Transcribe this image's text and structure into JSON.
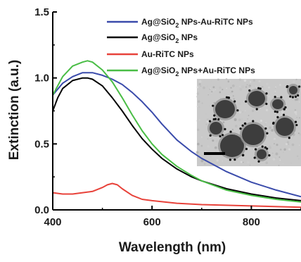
{
  "chart_data": {
    "type": "line",
    "xlabel": "Wavelength (nm)",
    "ylabel": "Extinction (a.u.)",
    "xlim": [
      400,
      900
    ],
    "ylim": [
      0,
      1.5
    ],
    "x_ticks": [
      400,
      600,
      800
    ],
    "y_ticks": [
      0.0,
      0.5,
      1.0,
      1.5
    ],
    "x_tick_labels": [
      "400",
      "600",
      "800"
    ],
    "y_tick_labels": [
      "0.0",
      "0.5",
      "1.0",
      "1.5"
    ],
    "grid": false,
    "legend_placement": "top-right",
    "series": [
      {
        "name": "Ag@SiO2 NPs-Au-RiTC NPs",
        "legend_main": "Ag@SiO",
        "legend_sub": "2",
        "legend_rest": " NPs-Au-RiTC NPs",
        "color": "#3a4bab",
        "x": [
          400,
          420,
          440,
          460,
          480,
          500,
          520,
          540,
          560,
          580,
          600,
          620,
          650,
          680,
          700,
          750,
          800,
          850,
          900
        ],
        "y": [
          0.87,
          0.96,
          1.01,
          1.04,
          1.04,
          1.02,
          0.99,
          0.95,
          0.89,
          0.82,
          0.74,
          0.65,
          0.53,
          0.44,
          0.39,
          0.29,
          0.21,
          0.15,
          0.1
        ]
      },
      {
        "name": "Ag@SiO2 NPs",
        "legend_main": "Ag@SiO",
        "legend_sub": "2",
        "legend_rest": " NPs",
        "color": "#000000",
        "x": [
          400,
          410,
          420,
          440,
          460,
          470,
          480,
          500,
          520,
          540,
          560,
          580,
          600,
          620,
          650,
          680,
          700,
          750,
          800,
          850,
          900
        ],
        "y": [
          0.75,
          0.85,
          0.92,
          0.98,
          1.0,
          1.0,
          0.99,
          0.94,
          0.85,
          0.75,
          0.64,
          0.54,
          0.46,
          0.39,
          0.31,
          0.25,
          0.22,
          0.16,
          0.12,
          0.09,
          0.07
        ]
      },
      {
        "name": "Au-RiTC NPs",
        "legend_main": "Au-RiTC NPs",
        "legend_sub": "",
        "legend_rest": "",
        "color": "#e8423a",
        "x": [
          400,
          420,
          440,
          460,
          480,
          500,
          510,
          520,
          530,
          540,
          560,
          580,
          600,
          650,
          700,
          800,
          900
        ],
        "y": [
          0.13,
          0.12,
          0.12,
          0.13,
          0.14,
          0.17,
          0.19,
          0.2,
          0.19,
          0.16,
          0.11,
          0.08,
          0.07,
          0.05,
          0.04,
          0.03,
          0.02
        ]
      },
      {
        "name": "Ag@SiO2 NPs+Au-RiTC NPs",
        "legend_main": "Ag@SiO",
        "legend_sub": "2",
        "legend_rest": " NPs+Au-RiTC NPs",
        "color": "#49bd45",
        "x": [
          400,
          420,
          440,
          460,
          470,
          480,
          500,
          520,
          540,
          560,
          580,
          600,
          620,
          650,
          680,
          700,
          750,
          800,
          850,
          900
        ],
        "y": [
          0.87,
          1.01,
          1.09,
          1.12,
          1.13,
          1.12,
          1.06,
          0.97,
          0.85,
          0.72,
          0.6,
          0.5,
          0.42,
          0.33,
          0.26,
          0.22,
          0.15,
          0.11,
          0.08,
          0.06
        ]
      }
    ]
  },
  "inset": {
    "description_icon": "tem-micrograph-image",
    "background": "#c9c9c9",
    "scale_bar_color": "#000000"
  }
}
